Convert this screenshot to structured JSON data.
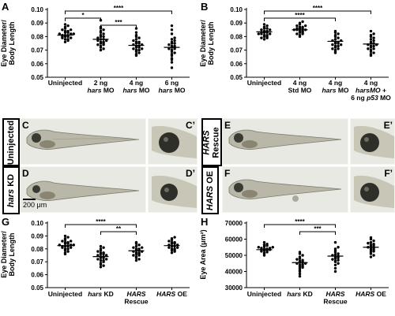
{
  "figure": {
    "panels": {
      "A": "A",
      "B": "B",
      "C": "C",
      "C_prime": "C’",
      "D": "D",
      "D_prime": "D’",
      "E": "E",
      "E_prime": "E’",
      "F": "F",
      "F_prime": "F’",
      "G": "G",
      "H": "H"
    },
    "row_labels": {
      "uninjected": "Uninjected",
      "hars_kd_1": "hars",
      "hars_kd_2": " KD",
      "hars_rescue_1": "HARS",
      "hars_rescue_2": "Rescue",
      "hars_oe_1": "HARS",
      "hars_oe_2": " OE"
    },
    "scale_bar": "200 μm",
    "colors": {
      "axis": "#000000",
      "dots": "#000000",
      "background": "#ffffff",
      "photo_bg": "#e9e9e3"
    }
  },
  "chart_data": [
    {
      "id": "A",
      "type": "scatter",
      "ylabel_lines": [
        "Eye Diameter/",
        "Body Length"
      ],
      "ylim": [
        0.05,
        0.1
      ],
      "yticks": [
        "0.05",
        "0.06",
        "0.07",
        "0.08",
        "0.09",
        "0.10"
      ],
      "categories": [
        [
          "Uninjected"
        ],
        [
          "2 ng",
          "hars MO"
        ],
        [
          "4 ng",
          "hars MO"
        ],
        [
          "6 ng",
          "hars MO"
        ]
      ],
      "series": [
        {
          "values": [
            0.076,
            0.077,
            0.078,
            0.078,
            0.079,
            0.079,
            0.08,
            0.08,
            0.08,
            0.081,
            0.081,
            0.081,
            0.082,
            0.082,
            0.082,
            0.083,
            0.083,
            0.084,
            0.084,
            0.085,
            0.085,
            0.086,
            0.087,
            0.088,
            0.089
          ]
        },
        {
          "values": [
            0.07,
            0.071,
            0.072,
            0.073,
            0.074,
            0.074,
            0.075,
            0.075,
            0.076,
            0.076,
            0.077,
            0.077,
            0.078,
            0.078,
            0.079,
            0.08,
            0.08,
            0.081,
            0.082,
            0.083,
            0.084,
            0.085,
            0.086,
            0.087,
            0.092
          ]
        },
        {
          "values": [
            0.066,
            0.067,
            0.068,
            0.069,
            0.07,
            0.07,
            0.071,
            0.071,
            0.072,
            0.072,
            0.073,
            0.073,
            0.074,
            0.074,
            0.075,
            0.075,
            0.076,
            0.076,
            0.077,
            0.078,
            0.079,
            0.08,
            0.081,
            0.083,
            0.086
          ]
        },
        {
          "values": [
            0.057,
            0.061,
            0.063,
            0.064,
            0.066,
            0.067,
            0.068,
            0.069,
            0.07,
            0.071,
            0.071,
            0.072,
            0.072,
            0.073,
            0.073,
            0.074,
            0.075,
            0.075,
            0.076,
            0.077,
            0.078,
            0.079,
            0.082,
            0.085,
            0.088
          ]
        }
      ],
      "means": [
        0.081,
        0.078,
        0.0735,
        0.072
      ],
      "significance": [
        {
          "from": 0,
          "to": 3,
          "label": "****"
        },
        {
          "from": 0,
          "to": 1,
          "label": "*"
        },
        {
          "from": 1,
          "to": 2,
          "label": "***"
        }
      ]
    },
    {
      "id": "B",
      "type": "scatter",
      "ylabel_lines": [
        "Eye  Diameter/",
        "Body Length"
      ],
      "ylim": [
        0.05,
        0.1
      ],
      "yticks": [
        "0.05",
        "0.06",
        "0.07",
        "0.08",
        "0.09",
        "0.10"
      ],
      "categories": [
        [
          "Uninjected"
        ],
        [
          "4 ng",
          "Std MO"
        ],
        [
          "4 ng",
          "hars MO"
        ],
        [
          "4 ng",
          "harsMO +",
          "6 ng p53 MO"
        ]
      ],
      "series": [
        {
          "values": [
            0.078,
            0.079,
            0.079,
            0.08,
            0.08,
            0.081,
            0.081,
            0.082,
            0.082,
            0.082,
            0.083,
            0.083,
            0.083,
            0.084,
            0.084,
            0.085,
            0.085,
            0.086,
            0.086,
            0.087,
            0.088,
            0.089
          ]
        },
        {
          "values": [
            0.08,
            0.081,
            0.082,
            0.082,
            0.083,
            0.083,
            0.084,
            0.084,
            0.085,
            0.085,
            0.085,
            0.086,
            0.086,
            0.086,
            0.087,
            0.087,
            0.088,
            0.088,
            0.089,
            0.09,
            0.091
          ]
        },
        {
          "values": [
            0.068,
            0.069,
            0.07,
            0.071,
            0.071,
            0.072,
            0.073,
            0.073,
            0.074,
            0.074,
            0.075,
            0.075,
            0.076,
            0.076,
            0.077,
            0.077,
            0.078,
            0.079,
            0.08,
            0.081,
            0.082,
            0.083,
            0.084
          ]
        },
        {
          "values": [
            0.066,
            0.067,
            0.068,
            0.069,
            0.07,
            0.071,
            0.071,
            0.072,
            0.073,
            0.073,
            0.074,
            0.074,
            0.075,
            0.075,
            0.076,
            0.077,
            0.078,
            0.079,
            0.08,
            0.081,
            0.082,
            0.084
          ]
        }
      ],
      "means": [
        0.0835,
        0.085,
        0.0765,
        0.0745
      ],
      "significance": [
        {
          "from": 0,
          "to": 3,
          "label": "****"
        },
        {
          "from": 0,
          "to": 2,
          "label": "****"
        }
      ]
    },
    {
      "id": "G",
      "type": "scatter",
      "ylabel_lines": [
        "Eye Diameter/",
        "Body Length"
      ],
      "ylim": [
        0.05,
        0.1
      ],
      "yticks": [
        "0.05",
        "0.06",
        "0.07",
        "0.08",
        "0.09",
        "0.10"
      ],
      "categories": [
        [
          "Uninjected"
        ],
        [
          "hars KD"
        ],
        [
          "HARS",
          "Rescue"
        ],
        [
          "HARS OE"
        ]
      ],
      "series": [
        {
          "values": [
            0.076,
            0.077,
            0.078,
            0.079,
            0.08,
            0.08,
            0.081,
            0.081,
            0.082,
            0.082,
            0.082,
            0.083,
            0.083,
            0.083,
            0.084,
            0.084,
            0.085,
            0.085,
            0.086,
            0.086,
            0.087,
            0.088,
            0.089,
            0.09
          ]
        },
        {
          "values": [
            0.066,
            0.067,
            0.068,
            0.069,
            0.07,
            0.071,
            0.071,
            0.072,
            0.072,
            0.073,
            0.073,
            0.074,
            0.074,
            0.075,
            0.075,
            0.076,
            0.076,
            0.077,
            0.077,
            0.078,
            0.079,
            0.08,
            0.081,
            0.082
          ]
        },
        {
          "values": [
            0.071,
            0.072,
            0.073,
            0.074,
            0.075,
            0.075,
            0.076,
            0.076,
            0.077,
            0.077,
            0.078,
            0.078,
            0.079,
            0.079,
            0.08,
            0.08,
            0.081,
            0.081,
            0.082,
            0.083,
            0.084,
            0.085
          ]
        },
        {
          "values": [
            0.077,
            0.078,
            0.079,
            0.079,
            0.08,
            0.08,
            0.081,
            0.081,
            0.082,
            0.082,
            0.083,
            0.083,
            0.084,
            0.084,
            0.085,
            0.085,
            0.086,
            0.087,
            0.088,
            0.089
          ]
        }
      ],
      "means": [
        0.0825,
        0.074,
        0.0785,
        0.0825
      ],
      "significance": [
        {
          "from": 0,
          "to": 2,
          "label": "****"
        },
        {
          "from": 1,
          "to": 2,
          "label": "**"
        }
      ]
    },
    {
      "id": "H",
      "type": "scatter",
      "ylabel_lines": [
        "Eye Area (μm²)"
      ],
      "ylim": [
        30000,
        70000
      ],
      "yticks": [
        "30000",
        "40000",
        "50000",
        "60000",
        "70000"
      ],
      "categories": [
        [
          "Uninjected"
        ],
        [
          "hars KD"
        ],
        [
          "HARS",
          "Rescue"
        ],
        [
          "HARS OE"
        ]
      ],
      "series": [
        {
          "values": [
            50000,
            51000,
            51500,
            52000,
            52500,
            53000,
            53000,
            53500,
            53500,
            54000,
            54000,
            54500,
            54500,
            55000,
            55000,
            55500,
            56000,
            56500,
            57000,
            58000
          ]
        },
        {
          "values": [
            37000,
            38500,
            40000,
            41000,
            42000,
            42500,
            43000,
            43500,
            44000,
            44500,
            45000,
            45000,
            45500,
            46000,
            46500,
            47000,
            47500,
            48000,
            49000,
            50000,
            51000,
            52000
          ]
        },
        {
          "values": [
            40000,
            42000,
            44000,
            45000,
            46000,
            46500,
            47000,
            47500,
            48000,
            48500,
            49000,
            49500,
            50000,
            50500,
            51000,
            52000,
            53000,
            54000,
            55000,
            58000
          ]
        },
        {
          "values": [
            49000,
            50000,
            51000,
            52000,
            52500,
            53000,
            53500,
            54000,
            54500,
            55000,
            55500,
            56000,
            56500,
            57000,
            57500,
            58000,
            59000,
            60000,
            61000
          ]
        }
      ],
      "means": [
        53500,
        45500,
        49500,
        55000
      ],
      "significance": [
        {
          "from": 0,
          "to": 2,
          "label": "****"
        },
        {
          "from": 1,
          "to": 2,
          "label": "***"
        }
      ]
    }
  ]
}
